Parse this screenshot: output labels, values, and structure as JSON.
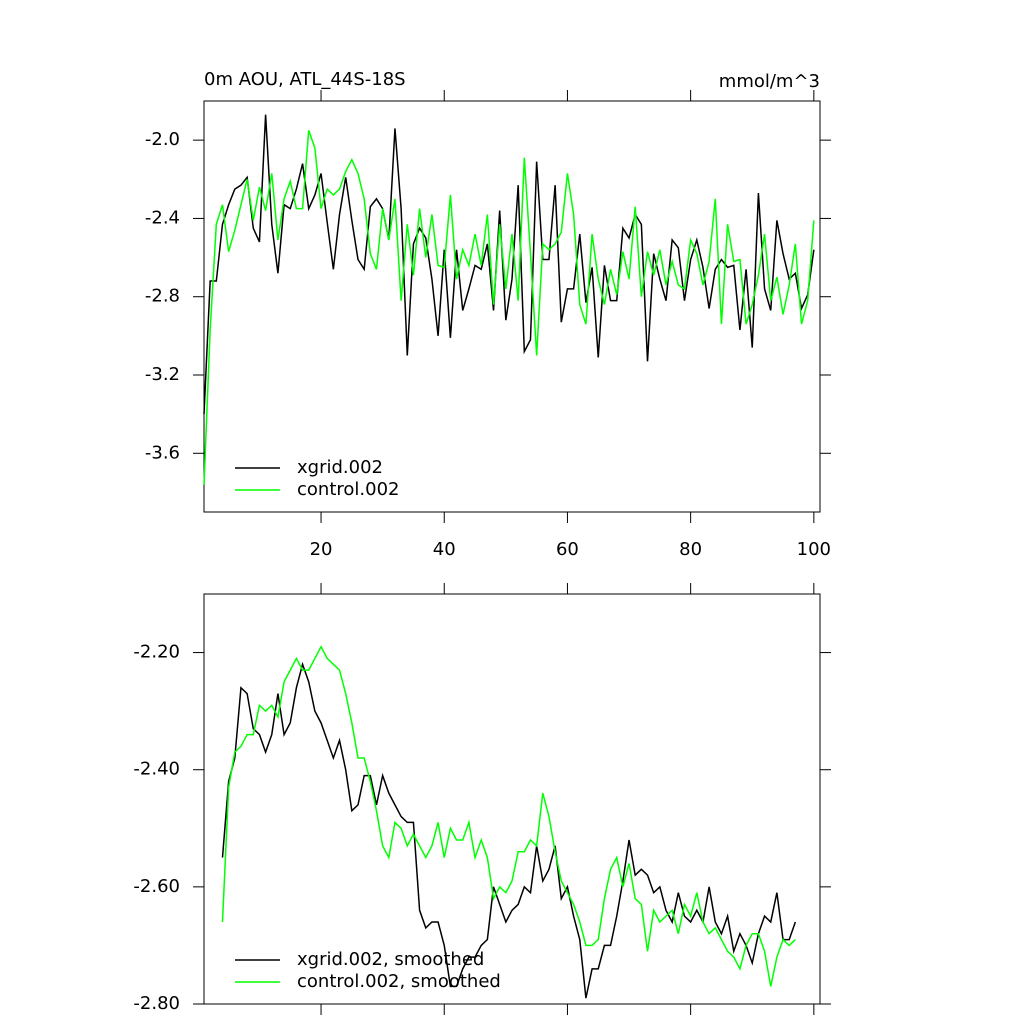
{
  "chart_data": [
    {
      "type": "line",
      "title": "0m AOU, ATL_44S-18S",
      "units": "mmol/m^3",
      "x": [
        1,
        2,
        3,
        4,
        5,
        6,
        7,
        8,
        9,
        10,
        11,
        12,
        13,
        14,
        15,
        16,
        17,
        18,
        19,
        20,
        21,
        22,
        23,
        24,
        25,
        26,
        27,
        28,
        29,
        30,
        31,
        32,
        33,
        34,
        35,
        36,
        37,
        38,
        39,
        40,
        41,
        42,
        43,
        44,
        45,
        46,
        47,
        48,
        49,
        50,
        51,
        52,
        53,
        54,
        55,
        56,
        57,
        58,
        59,
        60,
        61,
        62,
        63,
        64,
        65,
        66,
        67,
        68,
        69,
        70,
        71,
        72,
        73,
        74,
        75,
        76,
        77,
        78,
        79,
        80,
        81,
        82,
        83,
        84,
        85,
        86,
        87,
        88,
        89,
        90,
        91,
        92,
        93,
        94,
        95,
        96,
        97,
        98,
        99,
        100
      ],
      "series": [
        {
          "name": "xgrid.002",
          "color": "#000000",
          "values": [
            -3.4,
            -2.72,
            -2.72,
            -2.43,
            -2.33,
            -2.25,
            -2.23,
            -2.19,
            -2.45,
            -2.52,
            -1.87,
            -2.43,
            -2.68,
            -2.33,
            -2.35,
            -2.25,
            -2.12,
            -2.35,
            -2.28,
            -2.17,
            -2.42,
            -2.66,
            -2.38,
            -2.19,
            -2.41,
            -2.61,
            -2.66,
            -2.34,
            -2.3,
            -2.35,
            -2.51,
            -1.94,
            -2.35,
            -3.1,
            -2.53,
            -2.45,
            -2.5,
            -2.71,
            -3.0,
            -2.56,
            -3.01,
            -2.56,
            -2.87,
            -2.76,
            -2.64,
            -2.66,
            -2.53,
            -2.87,
            -2.36,
            -2.92,
            -2.71,
            -2.23,
            -3.08,
            -3.02,
            -2.11,
            -2.61,
            -2.61,
            -2.23,
            -2.93,
            -2.76,
            -2.76,
            -2.48,
            -2.83,
            -2.65,
            -3.11,
            -2.64,
            -2.82,
            -2.82,
            -2.45,
            -2.5,
            -2.38,
            -2.43,
            -3.13,
            -2.58,
            -2.71,
            -2.82,
            -2.51,
            -2.55,
            -2.82,
            -2.61,
            -2.51,
            -2.65,
            -2.86,
            -2.66,
            -2.61,
            -2.65,
            -2.64,
            -2.97,
            -2.66,
            -3.06,
            -2.27,
            -2.76,
            -2.87,
            -2.41,
            -2.58,
            -2.71,
            -2.68,
            -2.86,
            -2.79,
            -2.56
          ]
        },
        {
          "name": "control.002",
          "color": "#00ff00",
          "values": [
            -3.76,
            -2.97,
            -2.43,
            -2.33,
            -2.57,
            -2.46,
            -2.33,
            -2.2,
            -2.41,
            -2.24,
            -2.36,
            -2.17,
            -2.51,
            -2.3,
            -2.21,
            -2.35,
            -2.35,
            -1.95,
            -2.04,
            -2.35,
            -2.25,
            -2.28,
            -2.25,
            -2.16,
            -2.1,
            -2.17,
            -2.3,
            -2.58,
            -2.66,
            -2.35,
            -2.51,
            -2.3,
            -2.82,
            -2.43,
            -2.69,
            -2.35,
            -2.6,
            -2.38,
            -2.64,
            -2.65,
            -2.28,
            -2.71,
            -2.56,
            -2.64,
            -2.48,
            -2.64,
            -2.38,
            -2.84,
            -2.43,
            -2.76,
            -2.48,
            -2.82,
            -2.09,
            -2.58,
            -3.1,
            -2.53,
            -2.56,
            -2.53,
            -2.47,
            -2.17,
            -2.38,
            -2.84,
            -2.94,
            -2.48,
            -2.71,
            -2.84,
            -2.66,
            -2.79,
            -2.57,
            -2.71,
            -2.34,
            -2.8,
            -2.57,
            -2.69,
            -2.56,
            -2.74,
            -2.62,
            -2.74,
            -2.76,
            -2.51,
            -2.58,
            -2.74,
            -2.62,
            -2.3,
            -2.94,
            -2.43,
            -2.62,
            -2.61,
            -2.94,
            -2.84,
            -2.69,
            -2.48,
            -2.82,
            -2.7,
            -2.89,
            -2.74,
            -2.53,
            -2.94,
            -2.82,
            -2.41
          ]
        }
      ],
      "xlim": [
        1,
        101
      ],
      "xticks": [
        20,
        40,
        60,
        80,
        100
      ],
      "show_xtick_labels": true,
      "ylim": [
        -3.9,
        -1.8
      ],
      "yticks": [
        {
          "value": -2,
          "label": "-2.0"
        },
        -2.4,
        -2.8,
        -3.2,
        -3.6
      ]
    },
    {
      "type": "line",
      "x": [
        4,
        5,
        6,
        7,
        8,
        9,
        10,
        11,
        12,
        13,
        14,
        15,
        16,
        17,
        18,
        19,
        20,
        21,
        22,
        23,
        24,
        25,
        26,
        27,
        28,
        29,
        30,
        31,
        32,
        33,
        34,
        35,
        36,
        37,
        38,
        39,
        40,
        41,
        42,
        43,
        44,
        45,
        46,
        47,
        48,
        49,
        50,
        51,
        52,
        53,
        54,
        55,
        56,
        57,
        58,
        59,
        60,
        61,
        62,
        63,
        64,
        65,
        66,
        67,
        68,
        69,
        70,
        71,
        72,
        73,
        74,
        75,
        76,
        77,
        78,
        79,
        80,
        81,
        82,
        83,
        84,
        85,
        86,
        87,
        88,
        89,
        90,
        91,
        92,
        93,
        94,
        95,
        96,
        97
      ],
      "series": [
        {
          "name": "xgrid.002, smoothed",
          "color": "#000000",
          "values": [
            -2.55,
            -2.42,
            -2.38,
            -2.26,
            -2.27,
            -2.33,
            -2.34,
            -2.37,
            -2.34,
            -2.27,
            -2.34,
            -2.32,
            -2.26,
            -2.22,
            -2.25,
            -2.3,
            -2.32,
            -2.35,
            -2.38,
            -2.35,
            -2.4,
            -2.47,
            -2.46,
            -2.41,
            -2.41,
            -2.46,
            -2.41,
            -2.44,
            -2.46,
            -2.48,
            -2.49,
            -2.49,
            -2.64,
            -2.67,
            -2.66,
            -2.66,
            -2.7,
            -2.77,
            -2.77,
            -2.74,
            -2.72,
            -2.72,
            -2.7,
            -2.69,
            -2.6,
            -2.63,
            -2.66,
            -2.64,
            -2.63,
            -2.6,
            -2.61,
            -2.53,
            -2.59,
            -2.57,
            -2.53,
            -2.62,
            -2.6,
            -2.65,
            -2.69,
            -2.79,
            -2.74,
            -2.74,
            -2.7,
            -2.7,
            -2.65,
            -2.59,
            -2.52,
            -2.58,
            -2.57,
            -2.58,
            -2.61,
            -2.6,
            -2.64,
            -2.66,
            -2.61,
            -2.65,
            -2.66,
            -2.64,
            -2.66,
            -2.6,
            -2.66,
            -2.68,
            -2.65,
            -2.71,
            -2.68,
            -2.7,
            -2.73,
            -2.68,
            -2.65,
            -2.66,
            -2.61,
            -2.69,
            -2.69,
            -2.66
          ]
        },
        {
          "name": "control.002, smoothed",
          "color": "#00ff00",
          "values": [
            -2.66,
            -2.43,
            -2.37,
            -2.36,
            -2.34,
            -2.34,
            -2.29,
            -2.3,
            -2.29,
            -2.31,
            -2.25,
            -2.23,
            -2.21,
            -2.23,
            -2.23,
            -2.21,
            -2.19,
            -2.21,
            -2.22,
            -2.23,
            -2.27,
            -2.32,
            -2.38,
            -2.38,
            -2.42,
            -2.47,
            -2.53,
            -2.55,
            -2.49,
            -2.5,
            -2.53,
            -2.51,
            -2.53,
            -2.55,
            -2.53,
            -2.49,
            -2.55,
            -2.5,
            -2.52,
            -2.52,
            -2.49,
            -2.55,
            -2.52,
            -2.55,
            -2.62,
            -2.6,
            -2.61,
            -2.59,
            -2.54,
            -2.54,
            -2.52,
            -2.53,
            -2.44,
            -2.48,
            -2.54,
            -2.59,
            -2.61,
            -2.63,
            -2.66,
            -2.7,
            -2.7,
            -2.69,
            -2.62,
            -2.57,
            -2.55,
            -2.6,
            -2.56,
            -2.62,
            -2.63,
            -2.71,
            -2.64,
            -2.66,
            -2.65,
            -2.64,
            -2.68,
            -2.63,
            -2.65,
            -2.61,
            -2.66,
            -2.68,
            -2.67,
            -2.69,
            -2.71,
            -2.72,
            -2.74,
            -2.7,
            -2.68,
            -2.68,
            -2.71,
            -2.77,
            -2.72,
            -2.69,
            -2.7,
            -2.69
          ]
        }
      ],
      "xlim": [
        1,
        101
      ],
      "xticks": [
        20,
        40,
        60,
        80,
        100
      ],
      "show_xtick_labels": false,
      "ylim": [
        -2.8,
        -2.1
      ],
      "yticks": [
        {
          "value": -2.2,
          "label": "-2.20"
        },
        {
          "value": -2.4,
          "label": "-2.40"
        },
        {
          "value": -2.6,
          "label": "-2.60"
        },
        {
          "value": -2.8,
          "label": "-2.80"
        }
      ]
    }
  ]
}
